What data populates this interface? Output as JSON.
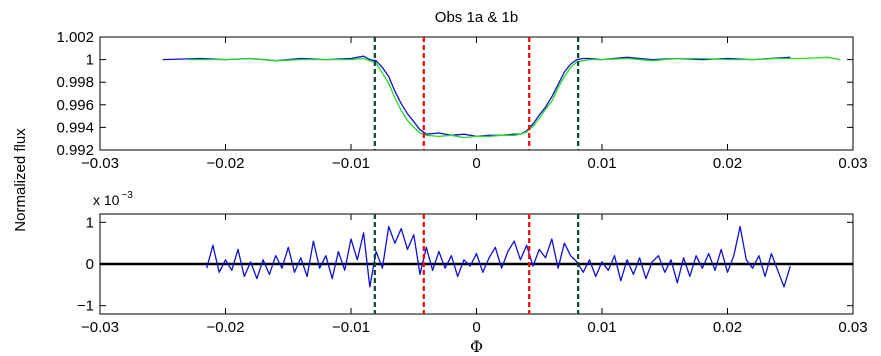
{
  "figure": {
    "title": "Obs 1a & 1b",
    "ylabel": "Normalized flux",
    "xlabel": "Φ",
    "residual_multiplier": "x 10",
    "residual_exponent": "−3"
  },
  "chart_data": [
    {
      "type": "line",
      "panel": "light-curve",
      "title": "Obs 1a & 1b",
      "ylabel": "Normalized flux",
      "xlim": [
        -0.03,
        0.03
      ],
      "ylim": [
        0.992,
        1.002
      ],
      "xticks": [
        -0.03,
        -0.02,
        -0.01,
        0,
        0.01,
        0.02,
        0.03
      ],
      "xtick_labels": [
        "−0.03",
        "−0.02",
        "−0.01",
        "0",
        "0.01",
        "0.02",
        "0.03"
      ],
      "yticks": [
        0.992,
        0.994,
        0.996,
        0.998,
        1,
        1.002
      ],
      "ytick_labels": [
        "0.992",
        "0.994",
        "0.996",
        "0.998",
        "1",
        "1.002"
      ],
      "grid": false,
      "series": [
        {
          "color": "#1010d0",
          "x": [
            -0.025,
            -0.022,
            -0.02,
            -0.018,
            -0.016,
            -0.014,
            -0.012,
            -0.01,
            -0.009,
            -0.0085,
            -0.008,
            -0.0075,
            -0.007,
            -0.0065,
            -0.006,
            -0.0055,
            -0.005,
            -0.0045,
            -0.004,
            -0.003,
            -0.002,
            -0.001,
            0,
            0.001,
            0.002,
            0.003,
            0.0035,
            0.004,
            0.0045,
            0.005,
            0.0055,
            0.006,
            0.0065,
            0.007,
            0.0075,
            0.008,
            0.0085,
            0.009,
            0.01,
            0.012,
            0.014,
            0.016,
            0.018,
            0.02,
            0.022,
            0.025
          ],
          "y": [
            1.0,
            1.0001,
            1.0,
            1.0001,
            0.9999,
            1.0001,
            1.0,
            1.0001,
            1.0003,
            1.0,
            0.9999,
            0.9993,
            0.9985,
            0.9972,
            0.9961,
            0.9952,
            0.9945,
            0.9938,
            0.9934,
            0.9935,
            0.9933,
            0.9934,
            0.9932,
            0.9933,
            0.9933,
            0.9934,
            0.9934,
            0.9937,
            0.9943,
            0.9951,
            0.9958,
            0.9967,
            0.9978,
            0.9989,
            0.9996,
            1.0,
            1.0001,
            1.0001,
            1.0,
            1.0002,
            1.0,
            1.0001,
            1.0,
            1.0001,
            1.0,
            1.0002
          ]
        },
        {
          "color": "#22dd22",
          "x": [
            -0.023,
            -0.02,
            -0.018,
            -0.016,
            -0.014,
            -0.012,
            -0.01,
            -0.009,
            -0.0085,
            -0.008,
            -0.0075,
            -0.007,
            -0.0065,
            -0.006,
            -0.0055,
            -0.005,
            -0.0045,
            -0.004,
            -0.003,
            -0.002,
            -0.001,
            0,
            0.001,
            0.002,
            0.003,
            0.0035,
            0.004,
            0.0045,
            0.005,
            0.0055,
            0.006,
            0.0065,
            0.007,
            0.0075,
            0.008,
            0.0085,
            0.009,
            0.01,
            0.012,
            0.014,
            0.016,
            0.018,
            0.02,
            0.022,
            0.024,
            0.026,
            0.028,
            0.029
          ],
          "y": [
            1.0,
            1.0,
            1.0001,
            0.9999,
            1.0,
            1.0,
            1.0,
            1.0001,
            0.9999,
            0.9997,
            0.9988,
            0.9979,
            0.9966,
            0.9955,
            0.9946,
            0.994,
            0.9935,
            0.9933,
            0.9932,
            0.9933,
            0.9931,
            0.9932,
            0.9932,
            0.9933,
            0.9933,
            0.9934,
            0.9936,
            0.9941,
            0.9948,
            0.9956,
            0.9963,
            0.9975,
            0.9985,
            0.9993,
            0.9998,
            0.9999,
            1.0,
            1.0,
            1.0001,
            0.9999,
            1.0001,
            1.0001,
            1.0,
            1.0,
            1.0001,
            1.0001,
            1.0002,
            1.0
          ]
        }
      ],
      "vlines": [
        {
          "x": -0.0081,
          "color": "#0b4a2a",
          "style": "dashed"
        },
        {
          "x": -0.0042,
          "color": "#ff0000",
          "style": "dashed"
        },
        {
          "x": 0.0042,
          "color": "#ff0000",
          "style": "dashed"
        },
        {
          "x": 0.0081,
          "color": "#0b4a2a",
          "style": "dashed"
        }
      ]
    },
    {
      "type": "line",
      "panel": "residuals",
      "xlabel": "Φ",
      "xlim": [
        -0.03,
        0.03
      ],
      "ylim": [
        -1.2,
        1.2
      ],
      "y_scale_note": "x 10^-3",
      "xticks": [
        -0.03,
        -0.02,
        -0.01,
        0,
        0.01,
        0.02,
        0.03
      ],
      "xtick_labels": [
        "−0.03",
        "−0.02",
        "−0.01",
        "0",
        "0.01",
        "0.02",
        "0.03"
      ],
      "yticks": [
        -1,
        0,
        1
      ],
      "ytick_labels": [
        "−1",
        "0",
        "1"
      ],
      "grid": false,
      "hline": {
        "y": 0,
        "color": "#000000"
      },
      "series": [
        {
          "color": "#1010d0",
          "x": [
            -0.0215,
            -0.021,
            -0.0205,
            -0.02,
            -0.0195,
            -0.019,
            -0.0185,
            -0.018,
            -0.0175,
            -0.017,
            -0.0165,
            -0.016,
            -0.0155,
            -0.015,
            -0.0145,
            -0.014,
            -0.0135,
            -0.013,
            -0.0125,
            -0.012,
            -0.0115,
            -0.011,
            -0.0105,
            -0.01,
            -0.0095,
            -0.009,
            -0.0085,
            -0.008,
            -0.0075,
            -0.007,
            -0.0065,
            -0.006,
            -0.0055,
            -0.005,
            -0.0045,
            -0.004,
            -0.0035,
            -0.003,
            -0.0025,
            -0.002,
            -0.0015,
            -0.001,
            -0.0005,
            0,
            0.0005,
            0.001,
            0.0015,
            0.002,
            0.0025,
            0.003,
            0.0035,
            0.004,
            0.0045,
            0.005,
            0.0055,
            0.006,
            0.0065,
            0.007,
            0.0075,
            0.008,
            0.0085,
            0.009,
            0.0095,
            0.01,
            0.0105,
            0.011,
            0.0115,
            0.012,
            0.0125,
            0.013,
            0.0135,
            0.014,
            0.0145,
            0.015,
            0.0155,
            0.016,
            0.0165,
            0.017,
            0.0175,
            0.018,
            0.0185,
            0.019,
            0.0195,
            0.02,
            0.0205,
            0.021,
            0.0215,
            0.022,
            0.0225,
            0.023,
            0.0235,
            0.024,
            0.0245,
            0.025
          ],
          "y": [
            -0.1,
            0.45,
            -0.2,
            0.1,
            -0.15,
            0.35,
            -0.3,
            0.05,
            -0.35,
            0.1,
            -0.25,
            0.2,
            -0.1,
            0.4,
            -0.2,
            0.15,
            -0.3,
            0.55,
            -0.1,
            0.2,
            -0.35,
            0.3,
            -0.15,
            0.6,
            0.1,
            0.75,
            -0.55,
            0.3,
            -0.1,
            0.9,
            0.5,
            0.85,
            0.35,
            0.7,
            -0.25,
            0.4,
            -0.15,
            0.3,
            -0.1,
            0.2,
            -0.3,
            0.1,
            -0.05,
            0.25,
            -0.2,
            0.15,
            0.4,
            -0.1,
            0.3,
            0.55,
            0.1,
            0.45,
            -0.05,
            0.35,
            0.15,
            0.6,
            -0.1,
            0.5,
            0.2,
            0.05,
            -0.2,
            0.1,
            -0.3,
            0.05,
            -0.15,
            0.2,
            -0.4,
            0.1,
            -0.25,
            0.15,
            -0.35,
            0.05,
            0.2,
            -0.2,
            0.1,
            -0.45,
            0.15,
            -0.3,
            0.2,
            -0.1,
            0.25,
            -0.15,
            0.35,
            -0.2,
            0.2,
            0.9,
            0.1,
            -0.1,
            0.2,
            -0.3,
            0.25,
            -0.15,
            -0.55,
            -0.05
          ]
        }
      ],
      "vlines": [
        {
          "x": -0.0081,
          "color": "#0b4a2a",
          "style": "dashed"
        },
        {
          "x": -0.0042,
          "color": "#ff0000",
          "style": "dashed"
        },
        {
          "x": 0.0042,
          "color": "#ff0000",
          "style": "dashed"
        },
        {
          "x": 0.0081,
          "color": "#0b4a2a",
          "style": "dashed"
        }
      ]
    }
  ]
}
